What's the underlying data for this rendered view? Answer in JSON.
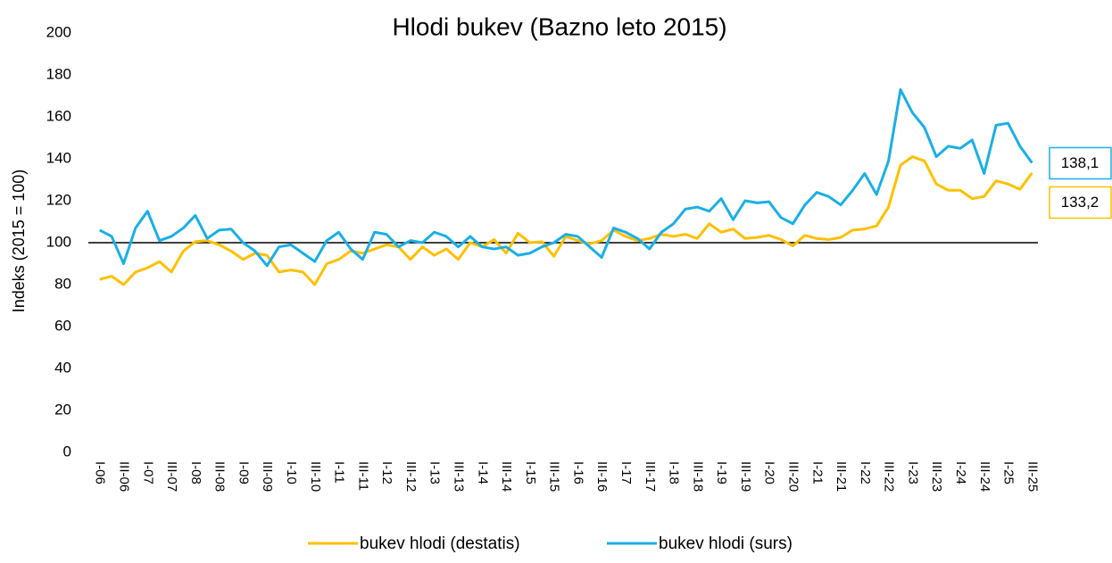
{
  "chart_data": {
    "type": "line",
    "title": "Hlodi bukev (Bazno leto 2015)",
    "y_label": "Indeks (2015 = 100)",
    "categories": [
      "I-06",
      null,
      "III-06",
      null,
      "I-07",
      null,
      "III-07",
      null,
      "I-08",
      null,
      "III-08",
      null,
      "I-09",
      null,
      "III-09",
      null,
      "I-10",
      null,
      "III-10",
      null,
      "I-11",
      null,
      "III-11",
      null,
      "I-12",
      null,
      "III-12",
      null,
      "I-13",
      null,
      "III-13",
      null,
      "I-14",
      null,
      "III-14",
      null,
      "I-15",
      null,
      "III-15",
      null,
      "I-16",
      null,
      "III-16",
      null,
      "I-17",
      null,
      "III-17",
      null,
      "I-18",
      null,
      "III-18",
      null,
      "I-19",
      null,
      "III-19",
      null,
      "I-20",
      null,
      "III-20",
      null,
      "I-21",
      null,
      "III-21",
      null,
      "I-22",
      null,
      "III-22",
      null,
      "I-23",
      null,
      "III-23",
      null,
      "I-24",
      null,
      "III-24",
      null,
      "I-25",
      null,
      "III-25"
    ],
    "series": [
      {
        "name": "bukev hlodi (destatis)",
        "color": "#ffc000",
        "values": [
          82.5,
          84,
          80,
          86,
          88,
          91,
          86,
          96,
          100.5,
          101,
          99,
          96,
          92,
          95,
          94,
          86,
          87,
          86,
          80,
          90,
          92,
          96,
          95,
          97,
          99,
          98,
          92,
          98,
          94,
          97,
          92,
          100,
          98,
          101.5,
          95,
          104.5,
          100,
          100.5,
          93.5,
          103,
          101,
          99.5,
          101,
          106,
          103,
          101,
          102,
          104,
          103,
          104,
          102,
          109,
          105,
          106.5,
          102,
          102.5,
          103.5,
          101.5,
          98.5,
          103.5,
          102,
          101.5,
          102.5,
          106,
          106.5,
          108,
          117,
          137,
          141,
          139,
          128,
          125,
          125,
          121,
          122,
          129.5,
          128,
          125.5,
          133.2
        ],
        "value_labels": [
          null,
          null,
          null,
          null,
          null,
          null,
          null,
          null,
          null,
          null,
          null,
          null,
          null,
          null,
          null,
          null,
          null,
          null,
          null,
          null,
          null,
          null,
          null,
          null,
          null,
          null,
          null,
          null,
          null,
          null,
          null,
          null,
          null,
          null,
          null,
          null,
          null,
          null,
          null,
          null,
          null,
          null,
          null,
          null,
          null,
          null,
          null,
          null,
          null,
          null,
          null,
          null,
          null,
          null,
          null,
          null,
          null,
          null,
          null,
          null,
          null,
          null,
          null,
          null,
          null,
          null,
          null,
          null,
          null,
          null,
          null,
          null,
          null,
          null,
          null,
          null,
          null,
          null,
          "133,2"
        ]
      },
      {
        "name": "bukev hlodi (surs)",
        "color": "#1aafe6",
        "values": [
          106,
          103,
          90,
          107,
          115,
          101,
          103,
          107,
          113,
          102,
          106,
          106.5,
          100,
          96,
          89,
          98,
          99,
          95,
          91,
          101,
          105,
          97,
          92,
          105,
          104,
          98,
          101,
          100,
          105,
          103,
          98,
          103,
          98,
          97,
          98,
          94,
          95,
          98,
          100,
          104,
          103,
          98,
          93,
          107,
          105,
          102,
          97,
          105,
          109,
          116,
          117,
          115,
          121,
          111,
          120,
          119,
          119.5,
          112,
          109,
          118,
          124,
          122,
          118,
          125,
          133,
          123,
          139,
          173,
          162,
          155,
          141,
          146,
          145,
          149,
          133,
          156,
          157,
          146,
          138.1
        ],
        "value_labels": [
          null,
          null,
          null,
          null,
          null,
          null,
          null,
          null,
          null,
          null,
          null,
          null,
          null,
          null,
          null,
          null,
          null,
          null,
          null,
          null,
          null,
          null,
          null,
          null,
          null,
          null,
          null,
          null,
          null,
          null,
          null,
          null,
          null,
          null,
          null,
          null,
          null,
          null,
          null,
          null,
          null,
          null,
          null,
          null,
          null,
          null,
          null,
          null,
          null,
          null,
          null,
          null,
          null,
          null,
          null,
          null,
          null,
          null,
          null,
          null,
          null,
          null,
          null,
          null,
          null,
          null,
          null,
          null,
          null,
          null,
          null,
          null,
          null,
          null,
          null,
          null,
          null,
          null,
          "138,1"
        ]
      }
    ],
    "ylim": [
      0,
      200
    ],
    "yticks": [
      0,
      20,
      40,
      60,
      80,
      100,
      120,
      140,
      160,
      180,
      200
    ],
    "grid": false,
    "reference_line": 100,
    "legend": "bottom"
  }
}
